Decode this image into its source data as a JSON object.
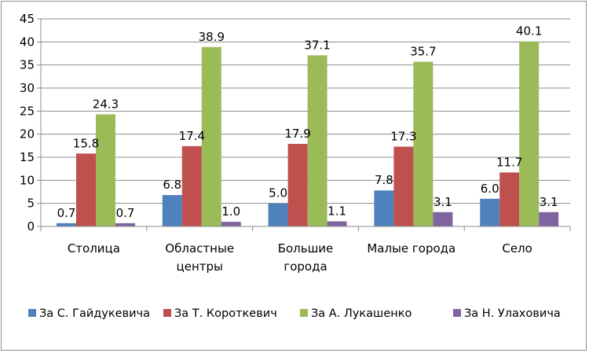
{
  "chart_data": {
    "type": "bar",
    "title": "",
    "xlabel": "",
    "ylabel": "",
    "ylim": [
      0,
      45
    ],
    "ytick_step": 5,
    "yticks": [
      "0",
      "5",
      "10",
      "15",
      "20",
      "25",
      "30",
      "35",
      "40",
      "45"
    ],
    "grid": true,
    "legend_position": "bottom",
    "categories": [
      [
        "Столица"
      ],
      [
        "Областные",
        "центры"
      ],
      [
        "Большие",
        "города"
      ],
      [
        "Малые города"
      ],
      [
        "Село"
      ]
    ],
    "series": [
      {
        "name": "За С. Гайдукевича",
        "color": "#4f81bd",
        "values": [
          0.7,
          6.8,
          5.0,
          7.8,
          6.0
        ],
        "labels": [
          "0.7",
          "6.8",
          "5.0",
          "7.8",
          "6.0"
        ]
      },
      {
        "name": "За Т. Короткевич",
        "color": "#c0504d",
        "values": [
          15.8,
          17.4,
          17.9,
          17.3,
          11.7
        ],
        "labels": [
          "15.8",
          "17.4",
          "17.9",
          "17.3",
          "11.7"
        ]
      },
      {
        "name": "За А. Лукашенко",
        "color": "#9bbb59",
        "values": [
          24.3,
          38.9,
          37.1,
          35.7,
          40.1
        ],
        "labels": [
          "24.3",
          "38.9",
          "37.1",
          "35.7",
          "40.1"
        ]
      },
      {
        "name": "За Н. Улаховича",
        "color": "#8064a2",
        "values": [
          0.7,
          1.0,
          1.1,
          3.1,
          3.1
        ],
        "labels": [
          "0.7",
          "1.0",
          "1.1",
          "3.1",
          "3.1"
        ]
      }
    ]
  }
}
